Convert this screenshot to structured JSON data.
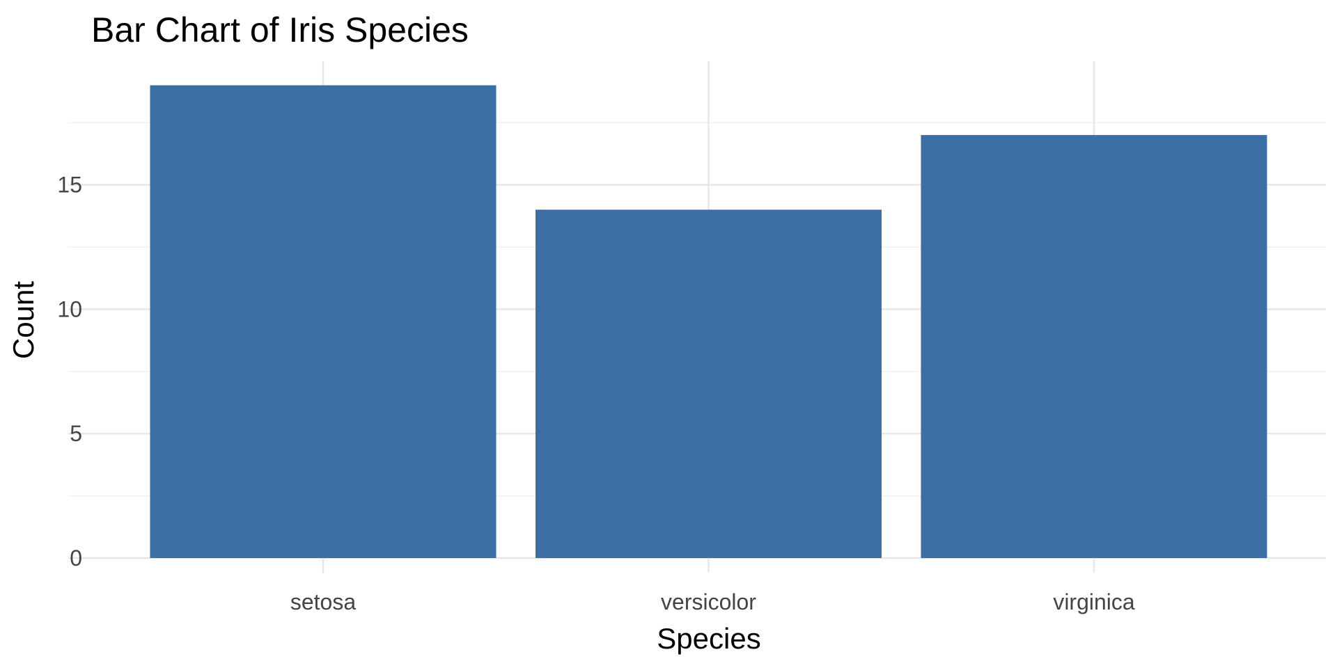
{
  "chart_data": {
    "type": "bar",
    "title": "Bar Chart of Iris Species",
    "xlabel": "Species",
    "ylabel": "Count",
    "categories": [
      "setosa",
      "versicolor",
      "virginica"
    ],
    "values": [
      19,
      14,
      17
    ],
    "ylim": [
      0,
      20
    ],
    "yticks": [
      "0",
      "5",
      "10",
      "15"
    ],
    "ytick_values": [
      0,
      5,
      10,
      15
    ],
    "grid": true,
    "bar_color": "#3A6EA5"
  }
}
